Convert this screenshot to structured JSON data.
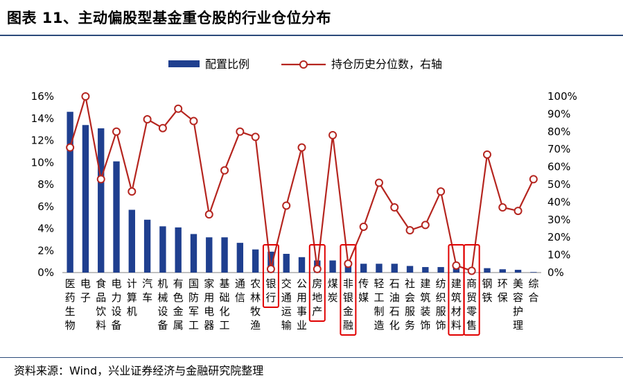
{
  "page": {
    "title": "图表 11、主动偏股型基金重仓股的行业仓位分布",
    "source": "资料来源：Wind，兴业证券经济与金融研究院整理"
  },
  "chart_data": {
    "type": "bar+line",
    "title": "图表 11、主动偏股型基金重仓股的行业仓位分布",
    "categories": [
      "医药生物",
      "电子",
      "食品饮料",
      "电力设备",
      "计算机",
      "汽车",
      "机械设备",
      "有色金属",
      "国防军工",
      "家用电器",
      "基础化工",
      "通信",
      "农林牧渔",
      "银行",
      "交通运输",
      "公用事业",
      "房地产",
      "煤炭",
      "非银金融",
      "传媒",
      "轻工制造",
      "石油石化",
      "社会服务",
      "建筑装饰",
      "纺织服饰",
      "建筑材料",
      "商贸零售",
      "钢铁",
      "环保",
      "美容护理",
      "综合"
    ],
    "series": [
      {
        "name": "配置比例",
        "kind": "bar",
        "axis": "left",
        "color": "#1f3f8f",
        "values": [
          14.6,
          13.4,
          13.1,
          10.1,
          5.7,
          4.8,
          4.2,
          4.1,
          3.5,
          3.2,
          3.2,
          2.7,
          2.1,
          1.9,
          1.7,
          1.4,
          1.1,
          1.1,
          0.9,
          0.8,
          0.8,
          0.8,
          0.6,
          0.5,
          0.5,
          0.5,
          0.4,
          0.4,
          0.3,
          0.25,
          0.05
        ]
      },
      {
        "name": "持仓历史分位数，右轴",
        "kind": "line",
        "axis": "right",
        "color": "#b5251f",
        "values": [
          71,
          100,
          53,
          80,
          46,
          87,
          82,
          93,
          86,
          33,
          58,
          80,
          77,
          2,
          38,
          71,
          2,
          78,
          5,
          26,
          51,
          37,
          24,
          27,
          46,
          4,
          1,
          67,
          37,
          35,
          53
        ]
      }
    ],
    "y_left": {
      "min": 0,
      "max": 16,
      "step": 2,
      "ticks": [
        "0%",
        "2%",
        "4%",
        "6%",
        "8%",
        "10%",
        "12%",
        "14%",
        "16%"
      ]
    },
    "y_right": {
      "min": 0,
      "max": 100,
      "step": 10,
      "ticks": [
        "0%",
        "10%",
        "20%",
        "30%",
        "40%",
        "50%",
        "60%",
        "70%",
        "80%",
        "90%",
        "100%"
      ]
    },
    "highlighted": [
      "银行",
      "房地产",
      "非银金融",
      "建筑材料",
      "商贸零售"
    ],
    "highlight_color": "#e00000",
    "legend": {
      "position": "top",
      "items": [
        "配置比例",
        "持仓历史分位数，右轴"
      ]
    }
  }
}
